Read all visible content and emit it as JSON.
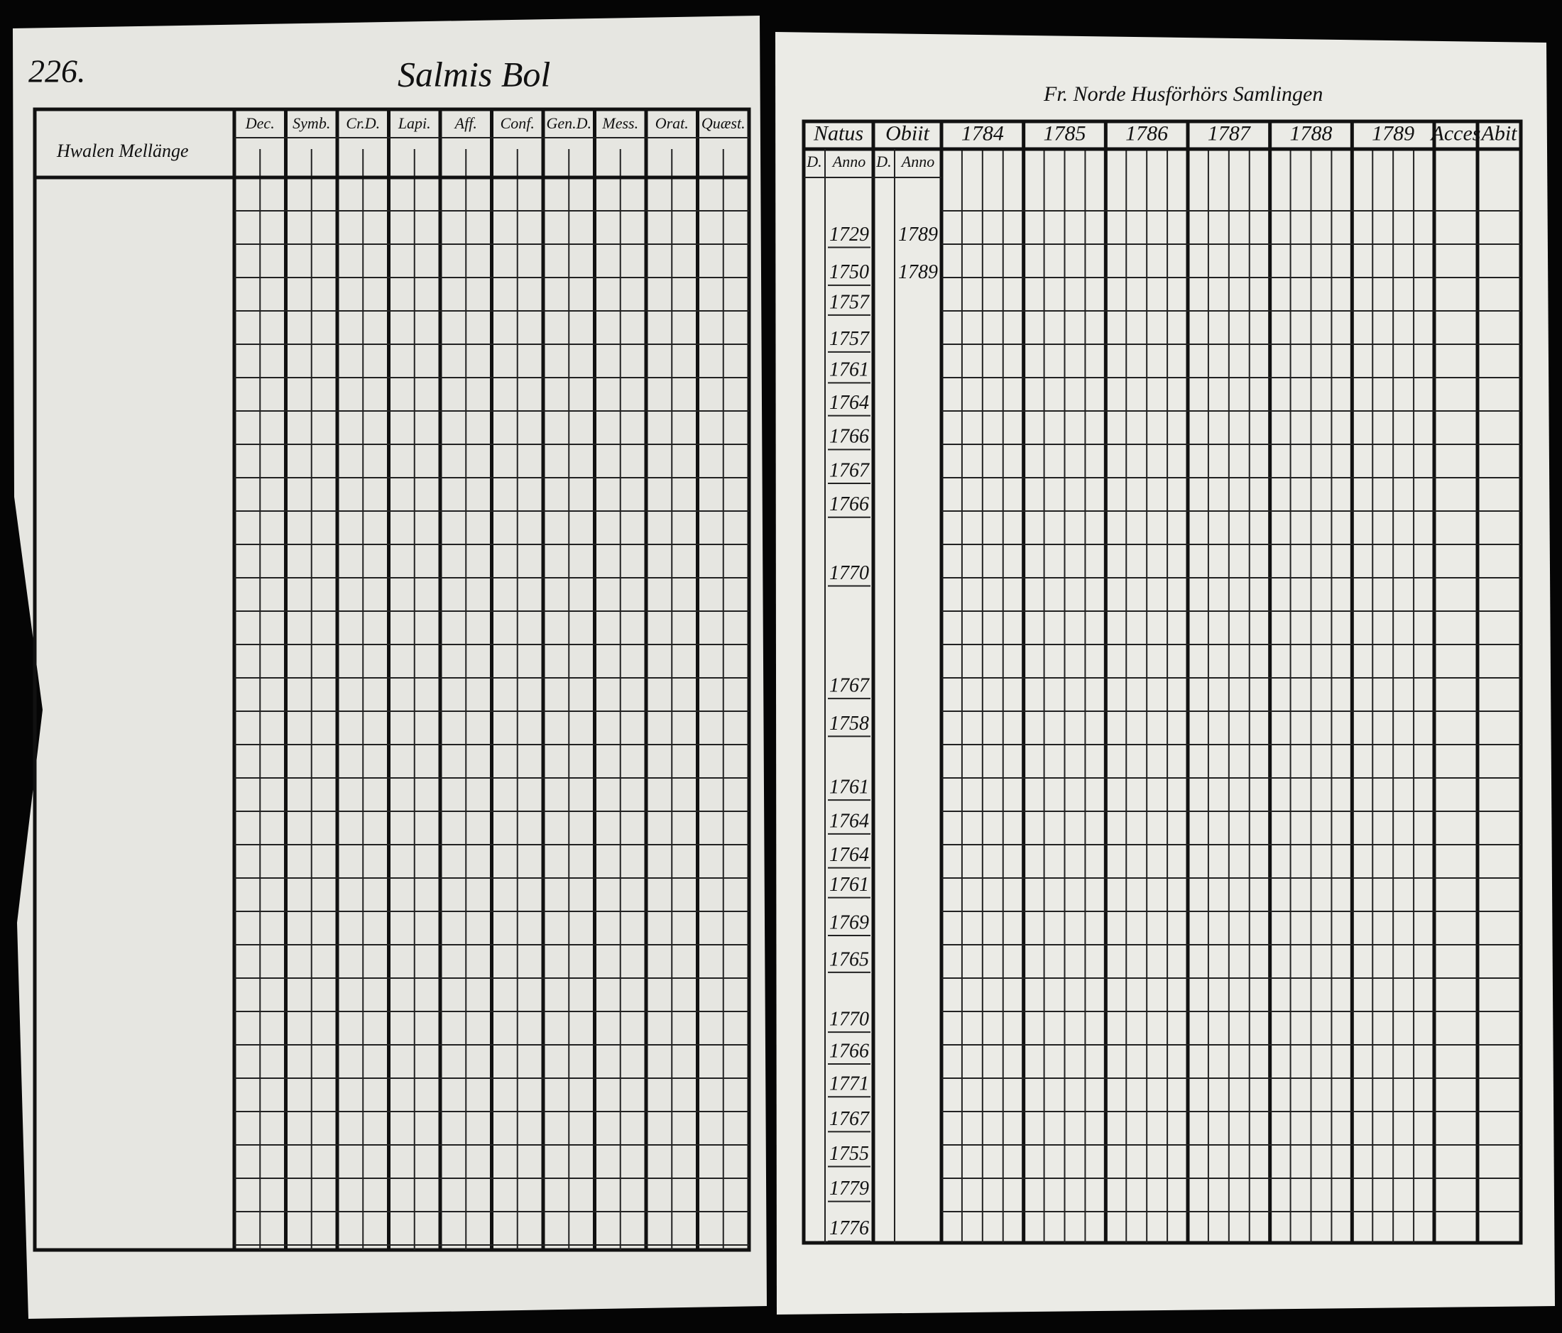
{
  "left_page": {
    "page_number": "226.",
    "title": "Salmis Bol",
    "columns": [
      "Dec.",
      "Symb.",
      "Cr.D.",
      "Lapi.",
      "Aff.",
      "Conf.",
      "Gen.D.",
      "Mess.",
      "Orat.",
      "Quæst."
    ],
    "row_header": "Hwalen Mellänge"
  },
  "right_page": {
    "header_note": "Fr. Norde Husförhörs Samlingen",
    "columns": [
      "Natus",
      "Obiit",
      "1784",
      "1785",
      "1786",
      "1787",
      "1788",
      "1789",
      "Acces",
      "Abit"
    ],
    "subheaders": [
      "D.",
      "Anno",
      "D.",
      "Anno"
    ],
    "natus_anno": [
      "1729",
      "1750",
      "1757",
      "1757",
      "1761",
      "1764",
      "1766",
      "1767",
      "1766",
      "1770",
      "1767",
      "1758",
      "1761",
      "1764",
      "1764",
      "1761",
      "1769",
      "1765",
      "1770",
      "1766",
      "1771",
      "1767",
      "1755",
      "1779",
      "1776"
    ],
    "obiit_anno": [
      "1789",
      "1789"
    ]
  }
}
